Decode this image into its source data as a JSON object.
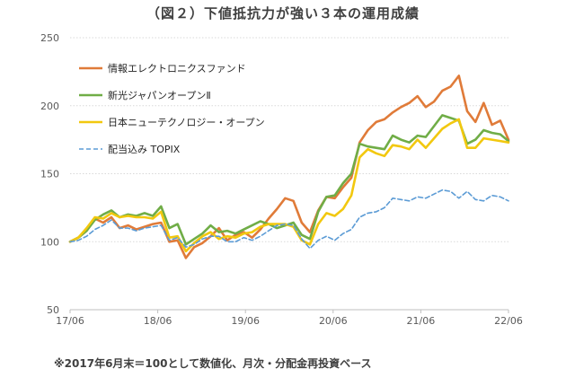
{
  "chart_data": {
    "type": "line",
    "title": "（図２）下値抵抗力が強い３本の運用成績",
    "note": "※2017年6月末＝100として数値化、月次・分配金再投資ベース",
    "ylim": [
      50,
      250
    ],
    "yticks": [
      50,
      100,
      150,
      200,
      250
    ],
    "xticks": [
      "17/06",
      "18/06",
      "19/06",
      "20/06",
      "21/06",
      "22/06"
    ],
    "xtick_months": [
      0,
      12,
      24,
      36,
      48,
      60
    ],
    "months": 60,
    "grid": true,
    "legend_position": "top-left",
    "series": [
      {
        "name": "情報エレクトロニクスファンド",
        "color": "#E07B39",
        "dash": "solid",
        "values": [
          100,
          103,
          108,
          117,
          114,
          118,
          110,
          112,
          109,
          111,
          113,
          114,
          100,
          101,
          88,
          96,
          99,
          104,
          110,
          101,
          105,
          107,
          103,
          109,
          117,
          124,
          132,
          130,
          114,
          107,
          123,
          133,
          132,
          140,
          147,
          173,
          182,
          188,
          190,
          195,
          199,
          202,
          207,
          199,
          203,
          211,
          214,
          222,
          196,
          188,
          202,
          186,
          189,
          175
        ]
      },
      {
        "name": "新光ジャパンオープンⅡ",
        "color": "#70AD47",
        "dash": "solid",
        "values": [
          100,
          103,
          108,
          116,
          120,
          123,
          118,
          120,
          119,
          121,
          119,
          126,
          110,
          113,
          98,
          102,
          106,
          112,
          107,
          108,
          106,
          109,
          112,
          115,
          113,
          110,
          112,
          114,
          105,
          102,
          122,
          133,
          134,
          143,
          150,
          172,
          170,
          169,
          168,
          178,
          175,
          173,
          178,
          177,
          185,
          193,
          191,
          189,
          172,
          175,
          182,
          180,
          179,
          174
        ]
      },
      {
        "name": "日本ニューテクノロジー・オープン",
        "color": "#F2C80F",
        "dash": "solid",
        "values": [
          100,
          103,
          110,
          118,
          117,
          121,
          118,
          119,
          118,
          118,
          117,
          122,
          103,
          104,
          93,
          99,
          104,
          107,
          102,
          104,
          103,
          106,
          107,
          111,
          113,
          113,
          113,
          111,
          101,
          98,
          113,
          121,
          119,
          124,
          134,
          162,
          168,
          165,
          163,
          171,
          170,
          168,
          175,
          169,
          176,
          183,
          187,
          190,
          169,
          169,
          176,
          175,
          174,
          173
        ]
      },
      {
        "name": "配当込み TOPIX",
        "color": "#5B9BD5",
        "dash": "dashed",
        "values": [
          100,
          101,
          104,
          109,
          112,
          116,
          110,
          110,
          108,
          110,
          111,
          112,
          101,
          103,
          96,
          98,
          102,
          104,
          104,
          100,
          100,
          103,
          101,
          104,
          108,
          112,
          113,
          112,
          102,
          95,
          101,
          104,
          101,
          106,
          109,
          118,
          121,
          122,
          125,
          132,
          131,
          130,
          133,
          132,
          135,
          138,
          137,
          132,
          137,
          131,
          130,
          134,
          133,
          130
        ]
      }
    ]
  }
}
